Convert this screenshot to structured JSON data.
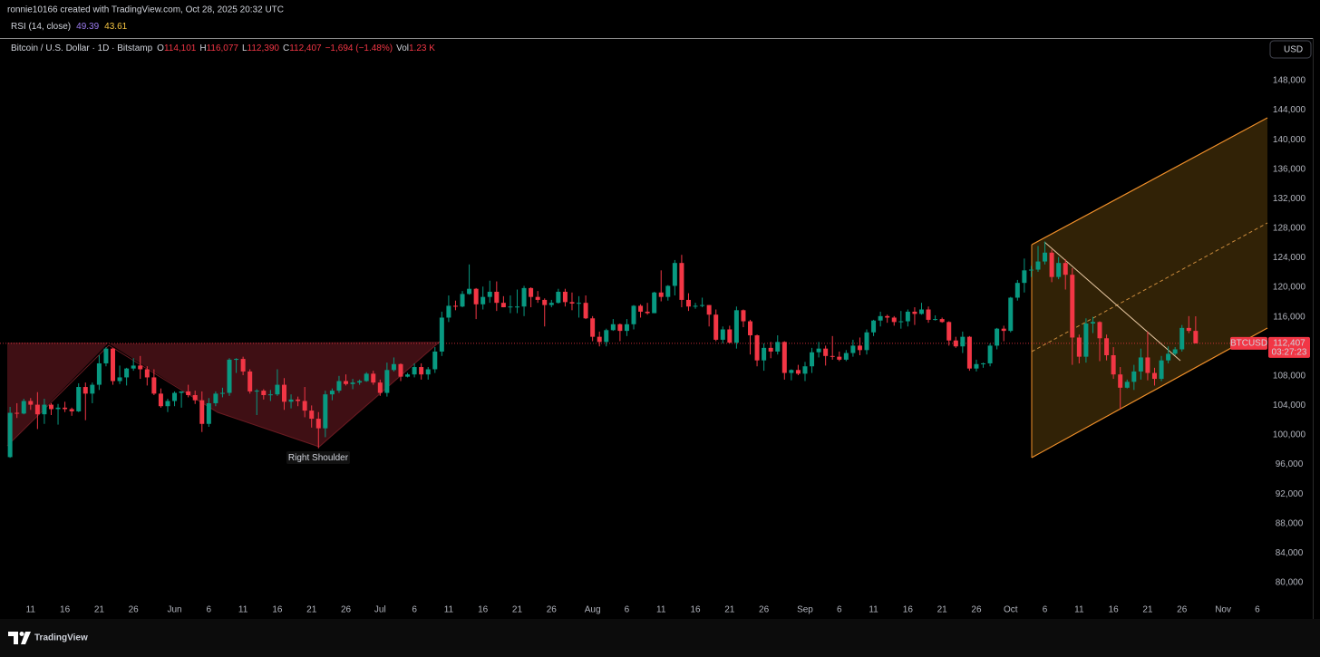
{
  "header": {
    "credit": "ronnie10166 created with TradingView.com, Oct 28, 2025 20:32 UTC"
  },
  "indicator": {
    "name": "RSI (14, close)",
    "values": [
      49.39,
      43.61
    ],
    "colors": [
      "#9c7cf0",
      "#f5c542"
    ]
  },
  "chart_data": {
    "type": "candlestick",
    "title": "Bitcoin / U.S. Dollar · 1D · Bitstamp",
    "ohlc_legend": [
      {
        "prefix": "O",
        "value": "114,101"
      },
      {
        "prefix": "H",
        "value": "116,077"
      },
      {
        "prefix": "L",
        "value": "112,390"
      },
      {
        "prefix": "C",
        "value": "112,407"
      }
    ],
    "change": "−1,694 (−1.48%)",
    "volume": {
      "prefix": "Vol",
      "value": "1.23 K"
    },
    "currency": "USD",
    "up_color": "#089981",
    "down_color": "#f23645",
    "x": [
      "May 8",
      "May 9",
      "May 10",
      "May 11",
      "May 12",
      "May 13",
      "May 14",
      "May 15",
      "May 16",
      "May 17",
      "May 18",
      "May 19",
      "May 20",
      "May 21",
      "May 22",
      "May 23",
      "May 24",
      "May 25",
      "May 26",
      "May 27",
      "May 28",
      "May 29",
      "May 30",
      "May 31",
      "Jun 1",
      "Jun 2",
      "Jun 3",
      "Jun 4",
      "Jun 5",
      "Jun 6",
      "Jun 7",
      "Jun 8",
      "Jun 9",
      "Jun 10",
      "Jun 11",
      "Jun 12",
      "Jun 13",
      "Jun 14",
      "Jun 15",
      "Jun 16",
      "Jun 17",
      "Jun 18",
      "Jun 19",
      "Jun 20",
      "Jun 21",
      "Jun 22",
      "Jun 23",
      "Jun 24",
      "Jun 25",
      "Jun 26",
      "Jun 27",
      "Jun 28",
      "Jun 29",
      "Jun 30",
      "Jul 1",
      "Jul 2",
      "Jul 3",
      "Jul 4",
      "Jul 5",
      "Jul 6",
      "Jul 7",
      "Jul 8",
      "Jul 9",
      "Jul 10",
      "Jul 11",
      "Jul 12",
      "Jul 13",
      "Jul 14",
      "Jul 15",
      "Jul 16",
      "Jul 17",
      "Jul 18",
      "Jul 19",
      "Jul 20",
      "Jul 21",
      "Jul 22",
      "Jul 23",
      "Jul 24",
      "Jul 25",
      "Jul 26",
      "Jul 27",
      "Jul 28",
      "Jul 29",
      "Jul 30",
      "Jul 31",
      "Aug 1",
      "Aug 2",
      "Aug 3",
      "Aug 4",
      "Aug 5",
      "Aug 6",
      "Aug 7",
      "Aug 8",
      "Aug 9",
      "Aug 10",
      "Aug 11",
      "Aug 12",
      "Aug 13",
      "Aug 14",
      "Aug 15",
      "Aug 16",
      "Aug 17",
      "Aug 18",
      "Aug 19",
      "Aug 20",
      "Aug 21",
      "Aug 22",
      "Aug 23",
      "Aug 24",
      "Aug 25",
      "Aug 26",
      "Aug 27",
      "Aug 28",
      "Aug 29",
      "Aug 30",
      "Aug 31",
      "Sep 1",
      "Sep 2",
      "Sep 3",
      "Sep 4",
      "Sep 5",
      "Sep 6",
      "Sep 7",
      "Sep 8",
      "Sep 9",
      "Sep 10",
      "Sep 11",
      "Sep 12",
      "Sep 13",
      "Sep 14",
      "Sep 15",
      "Sep 16",
      "Sep 17",
      "Sep 18",
      "Sep 19",
      "Sep 20",
      "Sep 21",
      "Sep 22",
      "Sep 23",
      "Sep 24",
      "Sep 25",
      "Sep 26",
      "Sep 27",
      "Sep 28",
      "Sep 29",
      "Sep 30",
      "Oct 1",
      "Oct 2",
      "Oct 3",
      "Oct 4",
      "Oct 5",
      "Oct 6",
      "Oct 7",
      "Oct 8",
      "Oct 9",
      "Oct 10",
      "Oct 11",
      "Oct 12",
      "Oct 13",
      "Oct 14",
      "Oct 15",
      "Oct 16",
      "Oct 17",
      "Oct 18",
      "Oct 19",
      "Oct 20",
      "Oct 21",
      "Oct 22",
      "Oct 23",
      "Oct 24",
      "Oct 25",
      "Oct 26",
      "Oct 27",
      "Oct 28"
    ],
    "open": [
      97000,
      103000,
      102900,
      104600,
      104100,
      102800,
      104100,
      103500,
      103700,
      103500,
      103200,
      106500,
      105600,
      106800,
      109700,
      111700,
      107300,
      107800,
      109000,
      109400,
      108900,
      107800,
      105600,
      103900,
      104600,
      105700,
      105900,
      105400,
      104700,
      101500,
      104300,
      105600,
      105700,
      110200,
      110300,
      108600,
      105900,
      106000,
      105400,
      105500,
      106800,
      104500,
      104800,
      104600,
      103300,
      102200,
      100900,
      105500,
      106000,
      107300,
      106900,
      107100,
      107300,
      108300,
      107100,
      105700,
      108800,
      109600,
      107900,
      108200,
      109200,
      108200,
      108900,
      111300,
      115900,
      117500,
      117400,
      119100,
      119800,
      117700,
      118700,
      119400,
      117900,
      117300,
      117400,
      117400,
      119900,
      118700,
      118300,
      117600,
      117900,
      119400,
      118000,
      117800,
      117900,
      115800,
      113300,
      112600,
      114200,
      115000,
      114100,
      115000,
      117500,
      116700,
      116500,
      119300,
      118700,
      120200,
      123300,
      118300,
      117400,
      117500,
      117600,
      116300,
      112900,
      114300,
      112500,
      116900,
      115400,
      113500,
      110100,
      111800,
      111300,
      112600,
      108400,
      108800,
      108300,
      109300,
      111200,
      111700,
      110700,
      110600,
      110200,
      111100,
      112100,
      111500,
      113900,
      115500,
      116100,
      115900,
      115300,
      115400,
      116700,
      116400,
      117000,
      115600,
      115700,
      115300,
      112800,
      112000,
      113300,
      109000,
      109600,
      109700,
      112100,
      114400,
      114100,
      118600,
      120600,
      122300,
      122400,
      123500,
      124700,
      121400,
      123300,
      121700,
      113200,
      110600,
      115100,
      115300,
      113100,
      110800,
      108200,
      106400,
      107200,
      108600,
      110500,
      108400,
      107600,
      110100,
      111000,
      111600,
      114500,
      114101
    ],
    "high": [
      103800,
      104300,
      104900,
      105000,
      105800,
      104900,
      104300,
      104200,
      104500,
      103700,
      107000,
      107100,
      107100,
      110800,
      111900,
      111800,
      109400,
      109100,
      110400,
      110700,
      109300,
      108900,
      106300,
      104900,
      105900,
      105900,
      106800,
      106000,
      105900,
      105000,
      105900,
      106400,
      110400,
      110400,
      110600,
      108900,
      106200,
      106200,
      106100,
      108900,
      107700,
      105500,
      105200,
      106500,
      104000,
      103100,
      106000,
      106300,
      108000,
      108200,
      107600,
      107500,
      108500,
      108700,
      107500,
      109800,
      110500,
      109700,
      108400,
      109700,
      109700,
      109200,
      111900,
      116700,
      118900,
      118200,
      119500,
      123100,
      119900,
      120100,
      120900,
      120800,
      118800,
      118900,
      119700,
      120200,
      120000,
      119500,
      118500,
      118300,
      119800,
      119800,
      119300,
      118800,
      118900,
      116100,
      114000,
      114400,
      115700,
      115100,
      115700,
      117600,
      117700,
      117900,
      119400,
      122300,
      120300,
      123700,
      124400,
      119200,
      117900,
      118600,
      117600,
      117000,
      114700,
      114800,
      117400,
      117000,
      115600,
      113600,
      112400,
      112600,
      113500,
      112700,
      108900,
      109500,
      109900,
      111800,
      112600,
      112100,
      113400,
      111300,
      111500,
      112900,
      113200,
      114300,
      115600,
      116700,
      116300,
      116100,
      116800,
      117000,
      117300,
      117900,
      117400,
      116200,
      115900,
      115400,
      113300,
      114000,
      113400,
      110200,
      109800,
      112400,
      114500,
      114800,
      118700,
      121000,
      123900,
      122900,
      125600,
      126200,
      125100,
      124100,
      123800,
      122600,
      113600,
      115800,
      116000,
      115400,
      113600,
      111900,
      109200,
      107500,
      109500,
      111700,
      114000,
      109100,
      110700,
      112000,
      111900,
      114900,
      116100,
      116077
    ],
    "low": [
      96900,
      102300,
      102800,
      103400,
      100800,
      101500,
      102700,
      101400,
      103100,
      102600,
      103100,
      102000,
      104300,
      106100,
      109300,
      106800,
      106900,
      106700,
      108700,
      107600,
      106700,
      105400,
      103700,
      103100,
      103900,
      103700,
      105100,
      104200,
      100400,
      101100,
      103900,
      105100,
      105300,
      108400,
      108100,
      105600,
      102700,
      104800,
      104600,
      105300,
      103400,
      103600,
      103900,
      102400,
      101000,
      98200,
      99700,
      104700,
      105700,
      106700,
      106200,
      106800,
      107200,
      106800,
      105300,
      105200,
      108600,
      107300,
      107800,
      107800,
      107500,
      107500,
      108400,
      110700,
      115300,
      116900,
      117300,
      119000,
      115700,
      117000,
      117900,
      116800,
      117300,
      116500,
      116500,
      116100,
      117300,
      117900,
      114700,
      117300,
      117800,
      117400,
      116900,
      115900,
      115700,
      112700,
      112000,
      112000,
      114100,
      112700,
      113400,
      114300,
      115900,
      116300,
      116500,
      118100,
      118200,
      118900,
      117300,
      116800,
      117100,
      117300,
      114700,
      112700,
      112400,
      112400,
      111700,
      114600,
      110900,
      109300,
      108700,
      110400,
      110900,
      107500,
      107400,
      108100,
      107300,
      108400,
      110500,
      109400,
      110200,
      110000,
      110000,
      110600,
      110800,
      110900,
      113400,
      114700,
      115200,
      114800,
      114400,
      114700,
      114900,
      116300,
      115200,
      115500,
      115200,
      112100,
      111800,
      111100,
      108700,
      108600,
      109100,
      109300,
      111600,
      112700,
      113900,
      118200,
      119300,
      121400,
      122100,
      123100,
      120700,
      121100,
      119700,
      109500,
      109700,
      109800,
      113800,
      110000,
      110100,
      107600,
      103500,
      106300,
      106100,
      107500,
      107400,
      106700,
      107300,
      109700,
      110800,
      111300,
      113800,
      112390
    ],
    "close": [
      103000,
      102900,
      104600,
      104100,
      102800,
      104100,
      103500,
      103700,
      103500,
      103200,
      106500,
      105600,
      106800,
      109700,
      111700,
      107300,
      107800,
      109000,
      109400,
      108900,
      107800,
      105600,
      103900,
      104600,
      105700,
      105900,
      105400,
      104700,
      101500,
      104300,
      105600,
      105700,
      110200,
      110300,
      108600,
      105900,
      106000,
      105400,
      105500,
      106800,
      104500,
      104800,
      104600,
      103300,
      102200,
      100900,
      105500,
      106000,
      107300,
      106900,
      107100,
      107300,
      108300,
      107100,
      105700,
      108800,
      109600,
      107900,
      108200,
      109200,
      108200,
      108900,
      111300,
      115900,
      117500,
      117400,
      119100,
      119800,
      117700,
      118700,
      119400,
      117900,
      117300,
      117400,
      117400,
      119900,
      118700,
      118300,
      117600,
      117900,
      119400,
      118000,
      117800,
      117900,
      115800,
      113300,
      112600,
      114200,
      115000,
      114100,
      115000,
      117500,
      116700,
      116500,
      119300,
      118700,
      120200,
      123300,
      118300,
      117400,
      117500,
      117600,
      116300,
      112900,
      114300,
      112500,
      116900,
      115400,
      113500,
      110100,
      111800,
      111300,
      112600,
      108400,
      108800,
      108300,
      109300,
      111200,
      111700,
      110700,
      110600,
      110200,
      111100,
      112100,
      111500,
      113900,
      115500,
      116100,
      115900,
      115300,
      115400,
      116700,
      116400,
      117000,
      115600,
      115700,
      115300,
      112800,
      112000,
      113300,
      109000,
      109600,
      109700,
      112100,
      114400,
      114100,
      118600,
      120600,
      122300,
      122400,
      123500,
      124700,
      121400,
      123300,
      121700,
      113200,
      110600,
      115100,
      115300,
      113100,
      110800,
      108200,
      106400,
      107200,
      108600,
      110500,
      108400,
      107600,
      110100,
      111000,
      111600,
      114500,
      114100,
      112407
    ],
    "xlim": [
      "May 6",
      "Nov 8"
    ],
    "xticks": [
      {
        "value": "May 11",
        "label": "11"
      },
      {
        "value": "May 16",
        "label": "16"
      },
      {
        "value": "May 21",
        "label": "21"
      },
      {
        "value": "May 26",
        "label": "26"
      },
      {
        "value": "Jun 1",
        "label": "Jun"
      },
      {
        "value": "Jun 6",
        "label": "6"
      },
      {
        "value": "Jun 11",
        "label": "11"
      },
      {
        "value": "Jun 16",
        "label": "16"
      },
      {
        "value": "Jun 21",
        "label": "21"
      },
      {
        "value": "Jun 26",
        "label": "26"
      },
      {
        "value": "Jul 1",
        "label": "Jul"
      },
      {
        "value": "Jul 6",
        "label": "6"
      },
      {
        "value": "Jul 11",
        "label": "11"
      },
      {
        "value": "Jul 16",
        "label": "16"
      },
      {
        "value": "Jul 21",
        "label": "21"
      },
      {
        "value": "Jul 26",
        "label": "26"
      },
      {
        "value": "Aug 1",
        "label": "Aug"
      },
      {
        "value": "Aug 6",
        "label": "6"
      },
      {
        "value": "Aug 11",
        "label": "11"
      },
      {
        "value": "Aug 16",
        "label": "16"
      },
      {
        "value": "Aug 21",
        "label": "21"
      },
      {
        "value": "Aug 26",
        "label": "26"
      },
      {
        "value": "Sep 1",
        "label": "Sep"
      },
      {
        "value": "Sep 6",
        "label": "6"
      },
      {
        "value": "Sep 11",
        "label": "11"
      },
      {
        "value": "Sep 16",
        "label": "16"
      },
      {
        "value": "Sep 21",
        "label": "21"
      },
      {
        "value": "Sep 26",
        "label": "26"
      },
      {
        "value": "Oct 1",
        "label": "Oct"
      },
      {
        "value": "Oct 6",
        "label": "6"
      },
      {
        "value": "Oct 11",
        "label": "11"
      },
      {
        "value": "Oct 16",
        "label": "16"
      },
      {
        "value": "Oct 21",
        "label": "21"
      },
      {
        "value": "Oct 26",
        "label": "26"
      },
      {
        "value": "Nov 1",
        "label": "Nov"
      },
      {
        "value": "Nov 6",
        "label": "6"
      }
    ],
    "ylim": [
      77900,
      153400
    ],
    "yticks": [
      {
        "value": 80000,
        "label": "80,000"
      },
      {
        "value": 84000,
        "label": "84,000"
      },
      {
        "value": 88000,
        "label": "88,000"
      },
      {
        "value": 92000,
        "label": "92,000"
      },
      {
        "value": 96000,
        "label": "96,000"
      },
      {
        "value": 100000,
        "label": "100,000"
      },
      {
        "value": 104000,
        "label": "104,000"
      },
      {
        "value": 108000,
        "label": "108,000"
      },
      {
        "value": 112000,
        "label": "112,000"
      },
      {
        "value": 116000,
        "label": "116,000"
      },
      {
        "value": 120000,
        "label": "120,000"
      },
      {
        "value": 124000,
        "label": "124,000"
      },
      {
        "value": 128000,
        "label": "128,000"
      },
      {
        "value": 132000,
        "label": "132,000"
      },
      {
        "value": 136000,
        "label": "136,000"
      },
      {
        "value": 140000,
        "label": "140,000"
      },
      {
        "value": 144000,
        "label": "144,000"
      },
      {
        "value": 148000,
        "label": "148,000"
      }
    ],
    "grid": false,
    "last_price": {
      "value": 112407,
      "label": "112,407"
    },
    "symbol": "BTCUSD",
    "countdown": "03:27:23",
    "annotation": "Right Shoulder"
  },
  "footer": {
    "brand": "TradingView"
  }
}
